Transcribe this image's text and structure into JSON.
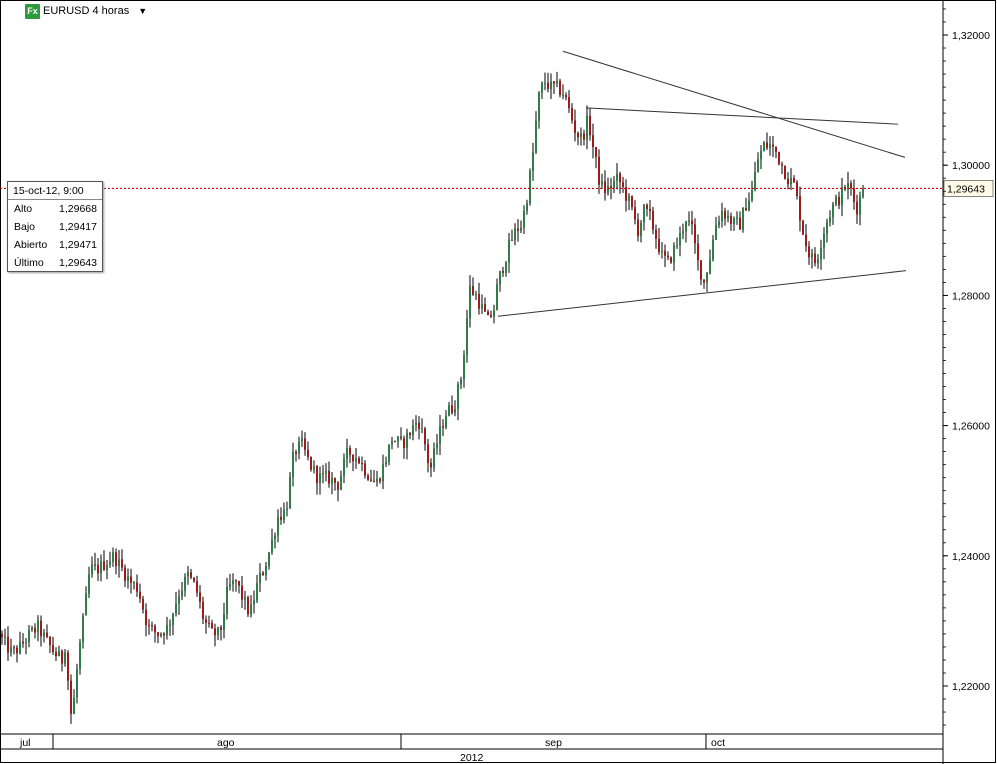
{
  "header": {
    "icon_label": "Fx",
    "symbol": "EURUSD 4 horas",
    "dropdown_icon": "chevron-down-icon"
  },
  "info_box": {
    "datetime": "15-oct-12, 9:00",
    "rows": [
      {
        "label": "Alto",
        "value": "1,29668"
      },
      {
        "label": "Bajo",
        "value": "1,29417"
      },
      {
        "label": "Abierto",
        "value": "1,29471"
      },
      {
        "label": "Último",
        "value": "1,29643"
      }
    ]
  },
  "price_tag": "1,29643",
  "colors": {
    "up_candle": "#2e7d4a",
    "down_candle": "#9e1b1b",
    "wick": "#000000",
    "last_price_line": "#cc0000",
    "trendline": "#333333",
    "price_tag_bg": "#fffbe6"
  },
  "chart_data": {
    "type": "candlestick",
    "title": "EURUSD 4 horas",
    "ylim": [
      1.2125,
      1.3255
    ],
    "y_ticks": [
      {
        "value": 1.22,
        "label": "1,22000"
      },
      {
        "value": 1.24,
        "label": "1,24000"
      },
      {
        "value": 1.26,
        "label": "1,26000"
      },
      {
        "value": 1.28,
        "label": "1,28000"
      },
      {
        "value": 1.3,
        "label": "1,30000"
      },
      {
        "value": 1.32,
        "label": "1,32000"
      }
    ],
    "x_month_labels": [
      "jul",
      "ago",
      "sep",
      "oct"
    ],
    "x_year_label": "2012",
    "last_price": 1.29643,
    "price_path_keypoints": [
      [
        0,
        1.228
      ],
      [
        14,
        1.225
      ],
      [
        22,
        1.226
      ],
      [
        32,
        1.228
      ],
      [
        40,
        1.229
      ],
      [
        48,
        1.227
      ],
      [
        57,
        1.225
      ],
      [
        64,
        1.224
      ],
      [
        68,
        1.227
      ],
      [
        72,
        1.215
      ],
      [
        76,
        1.218
      ],
      [
        80,
        1.224
      ],
      [
        86,
        1.231
      ],
      [
        92,
        1.238
      ],
      [
        100,
        1.238
      ],
      [
        108,
        1.239
      ],
      [
        116,
        1.24
      ],
      [
        124,
        1.238
      ],
      [
        132,
        1.236
      ],
      [
        140,
        1.235
      ],
      [
        150,
        1.229
      ],
      [
        160,
        1.228
      ],
      [
        170,
        1.229
      ],
      [
        180,
        1.234
      ],
      [
        190,
        1.237
      ],
      [
        198,
        1.235
      ],
      [
        206,
        1.23
      ],
      [
        214,
        1.228
      ],
      [
        222,
        1.228
      ],
      [
        230,
        1.235
      ],
      [
        238,
        1.236
      ],
      [
        246,
        1.233
      ],
      [
        252,
        1.231
      ],
      [
        260,
        1.236
      ],
      [
        266,
        1.238
      ],
      [
        272,
        1.241
      ],
      [
        280,
        1.246
      ],
      [
        288,
        1.247
      ],
      [
        296,
        1.256
      ],
      [
        304,
        1.257
      ],
      [
        312,
        1.254
      ],
      [
        320,
        1.252
      ],
      [
        330,
        1.252
      ],
      [
        340,
        1.251
      ],
      [
        350,
        1.256
      ],
      [
        360,
        1.255
      ],
      [
        368,
        1.253
      ],
      [
        378,
        1.251
      ],
      [
        386,
        1.254
      ],
      [
        394,
        1.258
      ],
      [
        404,
        1.257
      ],
      [
        412,
        1.259
      ],
      [
        420,
        1.261
      ],
      [
        426,
        1.258
      ],
      [
        432,
        1.253
      ],
      [
        440,
        1.258
      ],
      [
        448,
        1.262
      ],
      [
        456,
        1.263
      ],
      [
        464,
        1.268
      ],
      [
        468,
        1.275
      ],
      [
        472,
        1.281
      ],
      [
        478,
        1.28
      ],
      [
        484,
        1.278
      ],
      [
        490,
        1.276
      ],
      [
        496,
        1.278
      ],
      [
        500,
        1.282
      ],
      [
        506,
        1.285
      ],
      [
        512,
        1.288
      ],
      [
        518,
        1.29
      ],
      [
        524,
        1.291
      ],
      [
        530,
        1.296
      ],
      [
        536,
        1.303
      ],
      [
        540,
        1.31
      ],
      [
        546,
        1.313
      ],
      [
        552,
        1.312
      ],
      [
        558,
        1.312
      ],
      [
        566,
        1.311
      ],
      [
        572,
        1.308
      ],
      [
        578,
        1.305
      ],
      [
        584,
        1.304
      ],
      [
        590,
        1.307
      ],
      [
        596,
        1.302
      ],
      [
        602,
        1.297
      ],
      [
        608,
        1.296
      ],
      [
        614,
        1.297
      ],
      [
        620,
        1.298
      ],
      [
        626,
        1.296
      ],
      [
        632,
        1.294
      ],
      [
        640,
        1.29
      ],
      [
        646,
        1.293
      ],
      [
        652,
        1.292
      ],
      [
        658,
        1.289
      ],
      [
        664,
        1.286
      ],
      [
        670,
        1.285
      ],
      [
        676,
        1.287
      ],
      [
        682,
        1.289
      ],
      [
        688,
        1.292
      ],
      [
        694,
        1.29
      ],
      [
        700,
        1.285
      ],
      [
        706,
        1.282
      ],
      [
        712,
        1.286
      ],
      [
        718,
        1.291
      ],
      [
        724,
        1.293
      ],
      [
        730,
        1.292
      ],
      [
        736,
        1.291
      ],
      [
        742,
        1.291
      ],
      [
        748,
        1.294
      ],
      [
        754,
        1.296
      ],
      [
        760,
        1.301
      ],
      [
        766,
        1.303
      ],
      [
        772,
        1.303
      ],
      [
        778,
        1.302
      ],
      [
        784,
        1.3
      ],
      [
        790,
        1.298
      ],
      [
        796,
        1.297
      ],
      [
        800,
        1.294
      ],
      [
        806,
        1.289
      ],
      [
        812,
        1.286
      ],
      [
        818,
        1.285
      ],
      [
        824,
        1.289
      ],
      [
        830,
        1.292
      ],
      [
        836,
        1.294
      ],
      [
        842,
        1.295
      ],
      [
        848,
        1.297
      ],
      [
        854,
        1.296
      ],
      [
        858,
        1.293
      ],
      [
        862,
        1.295
      ],
      [
        864,
        1.29643
      ]
    ],
    "trendlines": [
      {
        "x1": 563,
        "y1": 1.3175,
        "x2": 905,
        "y2": 1.3012
      },
      {
        "x1": 586,
        "y1": 1.3088,
        "x2": 898,
        "y2": 1.3063
      },
      {
        "x1": 498,
        "y1": 1.2768,
        "x2": 906,
        "y2": 1.2838
      }
    ]
  }
}
